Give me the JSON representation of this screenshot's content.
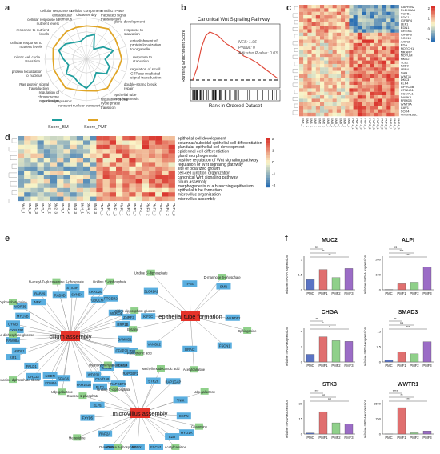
{
  "panels": {
    "a": "a",
    "b": "b",
    "c": "c",
    "d": "d",
    "e": "e",
    "f": "f"
  },
  "colors": {
    "bm": "#1f9e9e",
    "pmf": "#e0a526",
    "gsea_curve": "#e04b3c",
    "heat_low": "#2b6fb3",
    "heat_mid": "#fbf6c8",
    "heat_high": "#d9322b",
    "node_blue": "#5aaedf",
    "node_green": "#8fd08a",
    "node_red": "#e5332a",
    "bar_pmc": "#5a73c4",
    "bar_pmf1": "#e06f6f",
    "bar_pmf2": "#8fd08a",
    "bar_pmf3": "#9b6cc6"
  },
  "radar": {
    "labels": [
      "cellular component disassembly",
      "small GTPase mediated signal transduction",
      "gland development",
      "response to starvation",
      "establishment of protein localization to organelle",
      "response to starvation",
      "regulation of small GTPase mediated signal transduction",
      "double-strand break repair",
      "epithelial tube morphogenesis",
      "regulation of cell cycle phase transition",
      "nuclear transport",
      "nucleocytoplasmic transport",
      "regulation of chromosome organization",
      "Ras protein signal transduction",
      "protein localization to nucleus",
      "mitotic cell cycle transition",
      "cellular response to nutrient levels",
      "response to nutrient levels",
      "cellular response to nutrient levels",
      "cellular response to extracellular stimulus"
    ],
    "bm_values": [
      0.55,
      0.62,
      0.3,
      0.5,
      0.68,
      0.45,
      0.58,
      0.6,
      0.4,
      0.55,
      0.7,
      0.6,
      0.52,
      0.6,
      0.45,
      0.55,
      0.7,
      0.62,
      0.5,
      0.45
    ],
    "pmf_values": [
      0.8,
      0.82,
      0.9,
      0.85,
      0.82,
      0.85,
      0.8,
      0.78,
      0.86,
      0.8,
      0.76,
      0.78,
      0.85,
      0.8,
      0.82,
      0.8,
      0.84,
      0.8,
      0.82,
      0.8
    ],
    "legend_bm": "Score_BM",
    "legend_pmf": "Score_PMF"
  },
  "gsea": {
    "title": "Canonical Wnt Signaling Pathway",
    "ylabel": "Running Enrichment Score",
    "xlabel": "Rank in Ordered Dataset",
    "stats": [
      "NES: 1.96",
      "Pvalue: 0",
      "Adjusted Pvalue: 0.03"
    ],
    "curve": [
      0,
      0.15,
      0.4,
      0.55,
      0.6,
      0.58,
      0.55,
      0.5,
      0.45,
      0.42,
      0.38,
      0.35,
      0.3,
      0.28,
      0.25,
      0.22,
      0.18,
      0.14,
      0.1,
      0.06,
      0.02
    ]
  },
  "heatmap_c": {
    "genes": [
      "CAPRIN2",
      "PLEKHA4",
      "TGFB1",
      "SDC1",
      "IGFBP4",
      "LEF1",
      "EDN1",
      "GREM1",
      "IGFBP6",
      "SOX13",
      "AXIN2",
      "EDA",
      "NOTCH1",
      "NRARP",
      "NOTUM",
      "NKD2",
      "TLE2",
      "FZD9",
      "LRP4",
      "SHH",
      "WNT11",
      "DKK3",
      "KLF4",
      "GPRC5B",
      "CTNNB1",
      "CCNYL1",
      "DAPK3",
      "FRMD8",
      "WNT9A",
      "CAV1",
      "SOX4",
      "TMEM131L"
    ],
    "samples": [
      "BM1_1",
      "BM1_2",
      "BM1_3",
      "BM2_1",
      "BM2_2",
      "BM2_3",
      "BM3_1",
      "BM3_2",
      "BM3_3",
      "BM4_1",
      "BM4_2",
      "BM4_3",
      "PMF1_1",
      "PMF1_2",
      "PMF1_3",
      "PMF2_1",
      "PMF2_2",
      "PMF2_3",
      "PMF3_1",
      "PMF3_2",
      "PMF3_3",
      "PMF4_1",
      "PMF4_2",
      "PMF4_3"
    ],
    "scale_ticks": [
      "2",
      "1",
      "0",
      "-1"
    ]
  },
  "heatmap_d": {
    "terms": [
      "epithelial cell development",
      "columnar/cuboidal epithelial cell differentiation",
      "glandular epithelial cell development",
      "epidermal cell differentiation",
      "gland morphogenesis",
      "positive regulation of Wnt signaling pathway",
      "regulation of Wnt signaling pathway",
      "site of polarized growth",
      "cell-cell junction organization",
      "canonical Wnt signaling pathway",
      "cilium assembly",
      "morphogenesis of a branching epithelium",
      "epithelial tube formation",
      "microvillus organization",
      "microvillus assembly"
    ],
    "samples": [
      "BM1_1",
      "BM1_2",
      "BM1_3",
      "BM2_1",
      "BM2_2",
      "BM2_3",
      "BM3_1",
      "BM3_2",
      "BM3_3",
      "BM4_1",
      "BM4_2",
      "BM4_3",
      "PMF1_1",
      "PMF1_2",
      "PMF1_3",
      "PMF2_1",
      "PMF2_2",
      "PMF2_3",
      "PMF3_1",
      "PMF3_2",
      "PMF3_3",
      "PMF4_1",
      "PMF4_2",
      "PMF4_3"
    ],
    "scale_ticks": [
      "2",
      "1",
      "0",
      "-1",
      "-2"
    ]
  },
  "network": {
    "hubs": [
      {
        "id": "cilium",
        "label": "cilium assembly"
      },
      {
        "id": "epi",
        "label": "epithelial tube formation"
      },
      {
        "id": "micro",
        "label": "microvillus assembly"
      }
    ],
    "genes": [
      "SAMHD1",
      "IFT80",
      "CFAP20",
      "ABCC4",
      "MKS1",
      "C1orf158",
      "WDR31",
      "FAM161B",
      "SPAG6",
      "KDM6A",
      "NCDN",
      "DHX33",
      "PALD1",
      "KIF1",
      "HSDL1",
      "FAM98A",
      "CYSLTR1",
      "CYGB",
      "MYO7B",
      "WDR35",
      "NEK1",
      "RAB29",
      "RAB3D",
      "STX3IP",
      "SYNE4",
      "LRRC20",
      "UBQLN4",
      "PTGER2",
      "MCRC4",
      "ZNRF3",
      "RRP1B",
      "ANKRD52",
      "FSCN1",
      "DRAI2",
      "VANGL2",
      "KIF3C",
      "SLC41A1",
      "TPBG",
      "SMN",
      "ESPN",
      "MYO1A",
      "EZR",
      "FSCN1",
      "PODXL",
      "ATP8B1",
      "RAP2A",
      "FXYD5",
      "KLF5",
      "PLD1",
      "RAPGEF6",
      "RAPGEF2",
      "STK26",
      "RAP1GAP",
      "TNIK"
    ],
    "metabolites": [
      "Pantothenic acid",
      "Uridine 5'-diphosphate",
      "Udp-galactose",
      "Cyclic adenosine diphosphate ribose",
      "Uridine diphosphate glucose",
      "O-phosphotyrosine",
      "N-acetyl-D-glucosamine 6-phosphate",
      "Uridine 5'-diphosphate",
      "Uridine diphosphate glucose",
      "Sphingosine",
      "Acetylcarnitine",
      "Betaine",
      "Uridine 5'-diphosphate",
      "D-mannose 6-phosphate",
      "Guanosine",
      "Acetylcarnitine",
      "D-mannose 6-phosphate",
      "Meperidine",
      "Glucose 1-phosphate",
      "Hydroxyphenylacetic acid",
      "Methylhexadecanoic acid",
      "Udp-galactose"
    ]
  },
  "bars": {
    "ylabel": "relative mRNA expression",
    "groups": [
      "PMC",
      "PMF1",
      "PMF2",
      "PMF3"
    ],
    "charts": [
      {
        "title": "MUC2",
        "values": [
          1.0,
          2.0,
          1.2,
          2.1
        ],
        "ymax": 3,
        "sig": [
          "ns",
          "**",
          "**"
        ],
        "extra": ""
      },
      {
        "title": "ALPI",
        "values": [
          1,
          40,
          50,
          150
        ],
        "ymax": 200,
        "sig": [
          "ns",
          "***",
          "****"
        ],
        "extra": ""
      },
      {
        "title": "CHGA",
        "values": [
          1.0,
          3.3,
          2.8,
          2.7
        ],
        "ymax": 4,
        "sig": [
          "**",
          "*",
          "*"
        ],
        "extra": ""
      },
      {
        "title": "SMAD3",
        "values": [
          1,
          5,
          4,
          10
        ],
        "ymax": 15,
        "sig": [
          "**",
          "ns",
          "***"
        ],
        "extra": ""
      },
      {
        "title": "STK3",
        "values": [
          1,
          22,
          11,
          10
        ],
        "ymax": 30,
        "sig": [
          "***",
          "ns",
          "ns"
        ],
        "extra": ""
      },
      {
        "title": "WWTR1",
        "values": [
          1,
          1300,
          60,
          150
        ],
        "ymax": 1500,
        "sig": [
          "****",
          "**",
          "****"
        ],
        "extra": ""
      }
    ]
  }
}
